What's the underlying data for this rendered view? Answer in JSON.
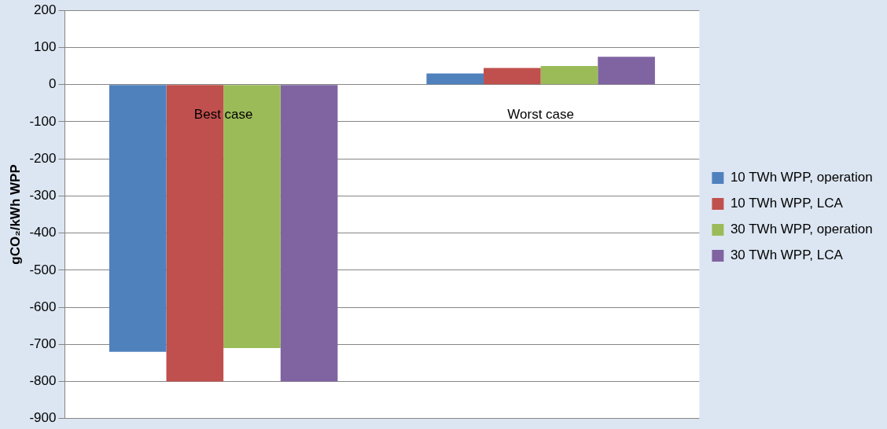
{
  "chart_data": {
    "type": "bar",
    "ylabel": "gCO₂/kWh WPP",
    "categories": [
      "Best case",
      "Worst case"
    ],
    "series": [
      {
        "name": "10 TWh WPP, operation",
        "color": "#4f81bd",
        "values": [
          -720,
          30
        ]
      },
      {
        "name": "10 TWh WPP, LCA",
        "color": "#c0504d",
        "values": [
          -800,
          45
        ]
      },
      {
        "name": "30 TWh WPP, operation",
        "color": "#9bbb59",
        "values": [
          -710,
          50
        ]
      },
      {
        "name": "30 TWh WPP, LCA",
        "color": "#8064a2",
        "values": [
          -800,
          75
        ]
      }
    ],
    "ylim": [
      -900,
      200
    ],
    "yticks": [
      -900,
      -800,
      -700,
      -600,
      -500,
      -400,
      -300,
      -200,
      -100,
      0,
      100,
      200
    ],
    "grid": "y",
    "legend": "right"
  }
}
